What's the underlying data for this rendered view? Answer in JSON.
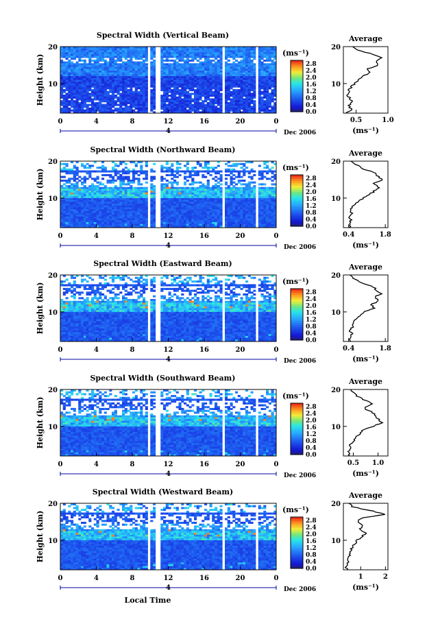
{
  "figure": {
    "date_label": "Dec 2006",
    "xlabel": "Local Time",
    "ylabel": "Height (km)",
    "colorbar_unit": "(ms⁻¹)",
    "avg_title": "Average",
    "avg_xlabel": "(ms⁻¹)",
    "day_tick": "4",
    "xticks": [
      "0",
      "4",
      "8",
      "12",
      "16",
      "20",
      "0"
    ],
    "yticks": [
      "10",
      "20"
    ],
    "colorbar_ticks": [
      "2.8",
      "2.4",
      "2.0",
      "1.6",
      "1.2",
      "0.8",
      "0.4",
      "0.0"
    ],
    "colors": {
      "low": "#1a1fd6",
      "mid": "#2aa9ff",
      "high": "#e62a1a",
      "bar_blue": "#0000aa"
    }
  },
  "chart_data": [
    {
      "type": "heatmap",
      "title": "Spectral Width (Vertical Beam)",
      "x_range": [
        0,
        24
      ],
      "y_range": [
        2,
        20
      ],
      "data_gaps_hours": [
        [
          9.8,
          10.1
        ],
        [
          10.7,
          11.0
        ],
        [
          18.0,
          18.3
        ],
        [
          21.7,
          22.0
        ]
      ],
      "colorbar_range": [
        0.0,
        3.0
      ],
      "average_profile": {
        "xticks": [
          "0.5",
          "1.0"
        ],
        "x_range": [
          0.3,
          1.0
        ],
        "heights_km": [
          2,
          3,
          4,
          5,
          6,
          7,
          8,
          9,
          10,
          11,
          12,
          13,
          14,
          15,
          16,
          17,
          18,
          19,
          20
        ],
        "values": [
          0.35,
          0.42,
          0.38,
          0.45,
          0.4,
          0.36,
          0.38,
          0.42,
          0.48,
          0.55,
          0.62,
          0.7,
          0.68,
          0.85,
          0.8,
          0.92,
          0.75,
          0.55,
          0.45
        ]
      }
    },
    {
      "type": "heatmap",
      "title": "Spectral Width (Northward Beam)",
      "x_range": [
        0,
        24
      ],
      "y_range": [
        2,
        20
      ],
      "data_gaps_hours": [
        [
          9.8,
          10.1
        ],
        [
          10.7,
          11.0
        ],
        [
          18.0,
          18.3
        ],
        [
          21.7,
          22.0
        ]
      ],
      "colorbar_range": [
        0.0,
        3.0
      ],
      "average_profile": {
        "xticks": [
          "0.4",
          "1.8"
        ],
        "x_range": [
          0.2,
          1.9
        ],
        "heights_km": [
          2,
          3,
          4,
          5,
          6,
          7,
          8,
          9,
          10,
          11,
          12,
          13,
          14,
          15,
          16,
          17,
          18,
          19,
          20
        ],
        "values": [
          0.45,
          0.42,
          0.5,
          0.4,
          0.52,
          0.48,
          0.6,
          0.75,
          0.95,
          1.2,
          1.4,
          1.55,
          1.3,
          1.7,
          1.5,
          1.35,
          0.9,
          0.7,
          0.5
        ]
      }
    },
    {
      "type": "heatmap",
      "title": "Spectral Width (Eastward Beam)",
      "x_range": [
        0,
        24
      ],
      "y_range": [
        2,
        20
      ],
      "data_gaps_hours": [
        [
          9.8,
          10.1
        ],
        [
          10.7,
          11.0
        ],
        [
          18.0,
          18.3
        ],
        [
          21.7,
          22.0
        ]
      ],
      "colorbar_range": [
        0.0,
        3.0
      ],
      "average_profile": {
        "xticks": [
          "0.4",
          "1.8"
        ],
        "x_range": [
          0.2,
          1.9
        ],
        "heights_km": [
          2,
          3,
          4,
          5,
          6,
          7,
          8,
          9,
          10,
          11,
          12,
          13,
          14,
          15,
          16,
          17,
          18,
          19,
          20
        ],
        "values": [
          0.48,
          0.45,
          0.52,
          0.46,
          0.55,
          0.6,
          0.68,
          0.8,
          1.0,
          1.35,
          1.25,
          1.55,
          1.4,
          1.65,
          1.45,
          1.3,
          0.85,
          0.6,
          0.45
        ]
      }
    },
    {
      "type": "heatmap",
      "title": "Spectral Width (Southward Beam)",
      "x_range": [
        0,
        24
      ],
      "y_range": [
        2,
        20
      ],
      "data_gaps_hours": [
        [
          9.8,
          10.1
        ],
        [
          10.7,
          11.0
        ],
        [
          18.0,
          18.3
        ],
        [
          21.7,
          22.0
        ]
      ],
      "colorbar_range": [
        0.0,
        3.0
      ],
      "average_profile": {
        "xticks": [
          "0.5",
          "1.0"
        ],
        "x_range": [
          0.3,
          1.2
        ],
        "heights_km": [
          2,
          3,
          4,
          5,
          6,
          7,
          8,
          9,
          10,
          11,
          12,
          13,
          14,
          15,
          16,
          17,
          18,
          19,
          20
        ],
        "values": [
          0.42,
          0.4,
          0.45,
          0.42,
          0.5,
          0.55,
          0.62,
          0.7,
          0.88,
          1.1,
          1.0,
          0.95,
          0.85,
          0.7,
          0.9,
          0.75,
          0.6,
          0.52,
          0.45
        ]
      }
    },
    {
      "type": "heatmap",
      "title": "Spectral Width (Westward Beam)",
      "x_range": [
        0,
        24
      ],
      "y_range": [
        2,
        20
      ],
      "data_gaps_hours": [
        [
          9.8,
          10.1
        ],
        [
          10.7,
          11.0
        ],
        [
          18.0,
          18.3
        ],
        [
          21.7,
          22.0
        ]
      ],
      "colorbar_range": [
        0.0,
        3.0
      ],
      "average_profile": {
        "xticks": [
          "1",
          "2"
        ],
        "x_range": [
          0.3,
          2.1
        ],
        "heights_km": [
          2,
          3,
          4,
          5,
          6,
          7,
          8,
          9,
          10,
          11,
          12,
          13,
          14,
          15,
          16,
          17,
          18,
          19,
          20
        ],
        "values": [
          0.45,
          0.42,
          0.5,
          0.48,
          0.55,
          0.6,
          0.65,
          0.75,
          0.85,
          1.05,
          1.2,
          0.95,
          1.1,
          0.9,
          1.0,
          2.0,
          1.4,
          0.7,
          0.5
        ]
      }
    }
  ]
}
